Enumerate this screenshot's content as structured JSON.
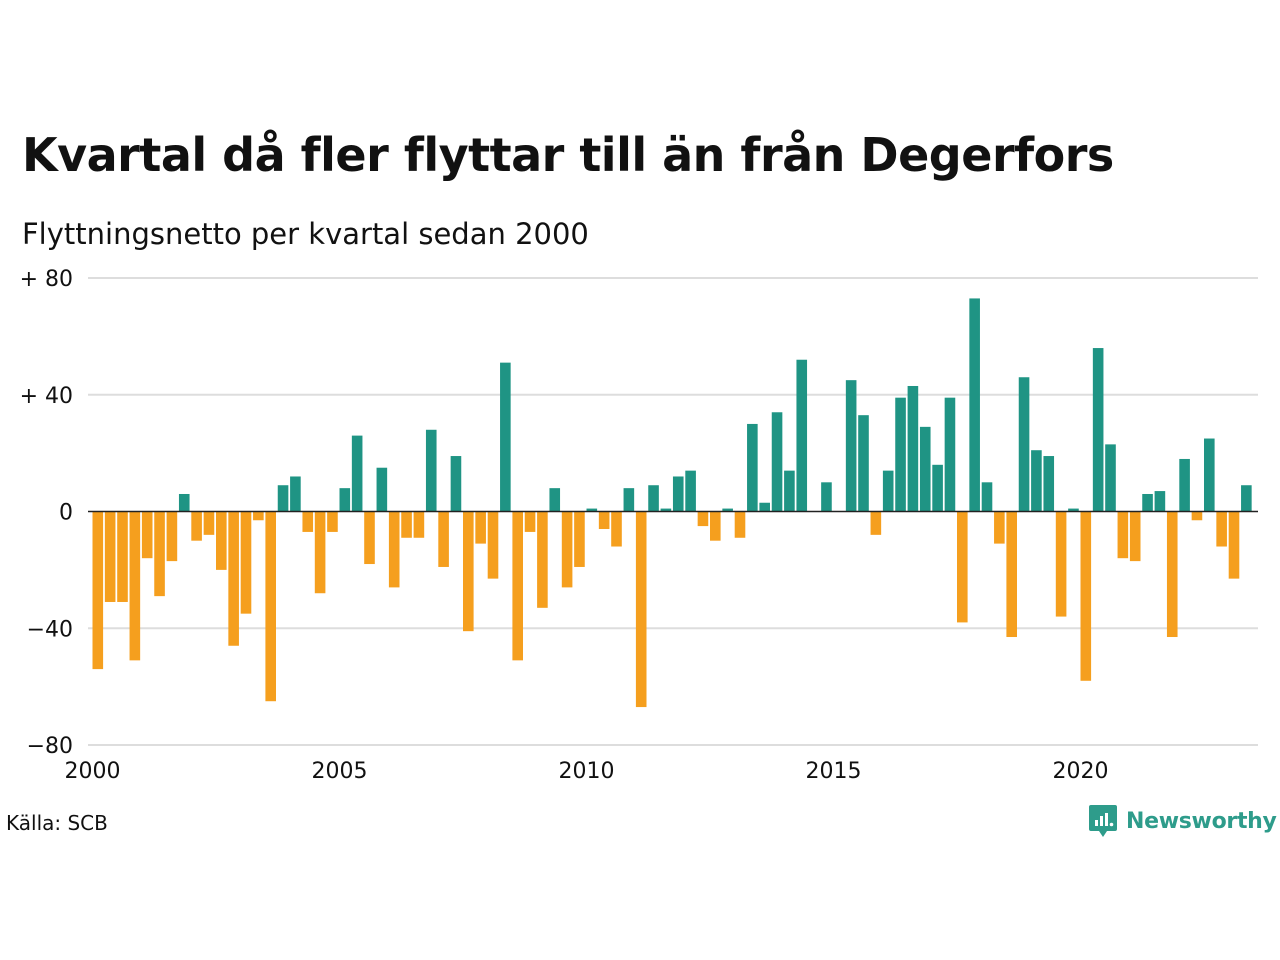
{
  "title": "Kvartal då fler flyttar till än från Degerfors",
  "subtitle": "Flyttningsnetto per kvartal sedan 2000",
  "source": "Källa: SCB",
  "brand": {
    "name": "Newsworthy",
    "icon": "newsworthy-logo-icon",
    "color": "#2e9c8b"
  },
  "colors": {
    "positive": "#1f9484",
    "negative": "#f59f1e",
    "grid": "#dddddd",
    "zero_line": "#222222"
  },
  "chart_data": {
    "type": "bar",
    "title": "Kvartal då fler flyttar till än från Degerfors",
    "subtitle": "Flyttningsnetto per kvartal sedan 2000",
    "xlabel": "",
    "ylabel": "",
    "x_start": "2000 Q1",
    "x_ticks": [
      "2000",
      "2005",
      "2010",
      "2015",
      "2020"
    ],
    "x_tick_years": [
      2000,
      2005,
      2010,
      2015,
      2020
    ],
    "y_ticks": [
      80,
      40,
      0,
      -40,
      -80
    ],
    "y_tick_labels": [
      "+ 80",
      "+ 40",
      "0",
      "−40",
      "−80"
    ],
    "ylim": [
      -80,
      80
    ],
    "grid": true,
    "values": [
      -54,
      -31,
      -31,
      -51,
      -16,
      -29,
      -17,
      6,
      -10,
      -8,
      -20,
      -46,
      -35,
      -3,
      -65,
      9,
      12,
      -7,
      -28,
      -7,
      8,
      26,
      -18,
      15,
      -26,
      -9,
      -9,
      28,
      -19,
      19,
      -41,
      -11,
      -23,
      51,
      -51,
      -7,
      -33,
      8,
      -26,
      -19,
      1,
      -6,
      -12,
      8,
      -67,
      9,
      1,
      12,
      14,
      -5,
      -10,
      1,
      -9,
      30,
      3,
      34,
      14,
      52,
      0,
      10,
      0,
      45,
      33,
      -8,
      14,
      39,
      43,
      29,
      16,
      39,
      -38,
      73,
      10,
      -11,
      -43,
      46,
      21,
      19,
      -36,
      1,
      -58,
      56,
      23,
      -16,
      -17,
      6,
      7,
      -43,
      18,
      -3,
      25,
      -12,
      -23,
      9
    ]
  }
}
